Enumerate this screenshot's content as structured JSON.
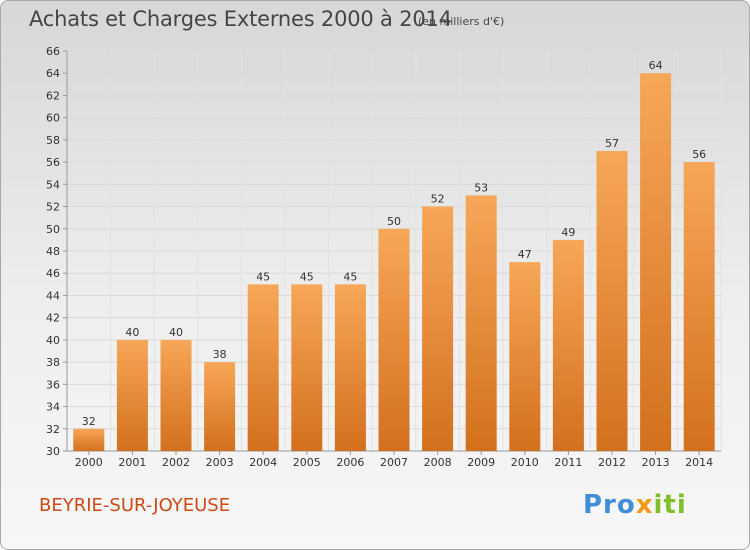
{
  "header": {
    "title": "Achats et Charges Externes 2000 à 2014",
    "unit": "(en milliers d'€)"
  },
  "footer": {
    "place": "BEYRIE-SUR-JOYEUSE",
    "logo": {
      "part1": "Pro",
      "part2": "x",
      "part3": "iti"
    }
  },
  "colors": {
    "bar_top": "#f7a758",
    "bar_bottom": "#d3701d",
    "place": "#cc4a16"
  },
  "chart_data": {
    "type": "bar",
    "title": "Achats et Charges Externes 2000 à 2014",
    "subtitle": "(en milliers d'€)",
    "xlabel": "",
    "ylabel": "",
    "categories": [
      "2000",
      "2001",
      "2002",
      "2003",
      "2004",
      "2005",
      "2006",
      "2007",
      "2008",
      "2009",
      "2010",
      "2011",
      "2012",
      "2013",
      "2014"
    ],
    "values": [
      32,
      40,
      40,
      38,
      45,
      45,
      45,
      50,
      52,
      53,
      47,
      49,
      57,
      64,
      56
    ],
    "ylim": [
      30,
      66
    ],
    "yticks": [
      30,
      32,
      34,
      36,
      38,
      40,
      42,
      44,
      46,
      48,
      50,
      52,
      54,
      56,
      58,
      60,
      62,
      64,
      66
    ],
    "grid": true,
    "legend": "none",
    "data_labels": true
  }
}
